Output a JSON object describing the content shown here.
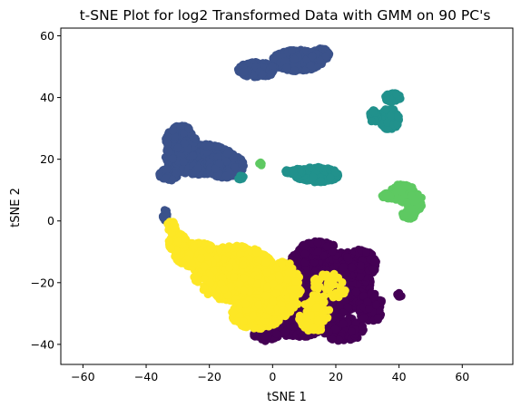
{
  "chart_data": {
    "type": "scatter",
    "title": "t-SNE Plot for log2 Transformed Data with GMM on 90 PC's",
    "xlabel": "tSNE 1",
    "ylabel": "tSNE 2",
    "xlim": [
      -67,
      76
    ],
    "ylim": [
      -46.5,
      62.5
    ],
    "xticks": [
      -60,
      -40,
      -20,
      0,
      20,
      40,
      60
    ],
    "yticks": [
      -40,
      -20,
      0,
      20,
      40,
      60
    ],
    "grid": false,
    "legend": "none",
    "colormap": "viridis",
    "series": [
      {
        "color": "#440154",
        "clusters": [
          {
            "cx": 20,
            "cy": -20,
            "rx": 11,
            "ry": 10,
            "n": 600
          },
          {
            "cx": 10,
            "cy": -20,
            "rx": 8,
            "ry": 10,
            "n": 300
          },
          {
            "cx": 8,
            "cy": -33,
            "rx": 8,
            "ry": 5,
            "n": 260
          },
          {
            "cx": 22,
            "cy": -35,
            "rx": 7,
            "ry": 4,
            "n": 140
          },
          {
            "cx": 27,
            "cy": -14,
            "rx": 6,
            "ry": 5,
            "n": 150
          },
          {
            "cx": 31,
            "cy": -28,
            "rx": 4,
            "ry": 5,
            "n": 80
          },
          {
            "cx": 14,
            "cy": -9,
            "rx": 6,
            "ry": 2.5,
            "n": 90
          },
          {
            "cx": -2,
            "cy": -37,
            "rx": 4,
            "ry": 2,
            "n": 50
          },
          {
            "cx": 40,
            "cy": -24,
            "rx": 1,
            "ry": 0.7,
            "n": 10
          }
        ]
      },
      {
        "color": "#3b528b",
        "clusters": [
          {
            "cx": -23,
            "cy": 20,
            "rx": 11,
            "ry": 5,
            "n": 700
          },
          {
            "cx": -29,
            "cy": 25,
            "rx": 5,
            "ry": 6,
            "n": 300
          },
          {
            "cx": -15,
            "cy": 18,
            "rx": 6,
            "ry": 4,
            "n": 200
          },
          {
            "cx": -33,
            "cy": 15,
            "rx": 3,
            "ry": 2,
            "n": 80
          },
          {
            "cx": 8,
            "cy": 52,
            "rx": 8,
            "ry": 3.5,
            "n": 400
          },
          {
            "cx": -5,
            "cy": 49,
            "rx": 6,
            "ry": 2.5,
            "n": 200
          },
          {
            "cx": 15,
            "cy": 54,
            "rx": 3,
            "ry": 2,
            "n": 80
          },
          {
            "cx": -34,
            "cy": 2,
            "rx": 0.8,
            "ry": 2,
            "n": 15
          }
        ]
      },
      {
        "color": "#21918c",
        "clusters": [
          {
            "cx": 14,
            "cy": 15,
            "rx": 7,
            "ry": 2.5,
            "n": 250
          },
          {
            "cx": 7,
            "cy": 16,
            "rx": 3,
            "ry": 1,
            "n": 50
          },
          {
            "cx": 37,
            "cy": 33,
            "rx": 3,
            "ry": 3.5,
            "n": 150
          },
          {
            "cx": 38,
            "cy": 40,
            "rx": 2.5,
            "ry": 1.5,
            "n": 60
          },
          {
            "cx": 32,
            "cy": 34,
            "rx": 1.5,
            "ry": 2,
            "n": 40
          },
          {
            "cx": -10,
            "cy": 14,
            "rx": 1,
            "ry": 0.8,
            "n": 10
          }
        ]
      },
      {
        "color": "#5ec962",
        "clusters": [
          {
            "cx": 41,
            "cy": 9,
            "rx": 4,
            "ry": 3,
            "n": 150
          },
          {
            "cx": 45,
            "cy": 6,
            "rx": 2.5,
            "ry": 3,
            "n": 80
          },
          {
            "cx": 43,
            "cy": 2,
            "rx": 2,
            "ry": 1.5,
            "n": 40
          },
          {
            "cx": 36,
            "cy": 8,
            "rx": 1.5,
            "ry": 1,
            "n": 20
          },
          {
            "cx": -4,
            "cy": 18.5,
            "rx": 0.7,
            "ry": 0.6,
            "n": 6
          }
        ]
      },
      {
        "color": "#fde725",
        "clusters": [
          {
            "cx": -12,
            "cy": -17,
            "rx": 13,
            "ry": 9,
            "n": 800
          },
          {
            "cx": -24,
            "cy": -11,
            "rx": 7,
            "ry": 4,
            "n": 250
          },
          {
            "cx": -5,
            "cy": -30,
            "rx": 8,
            "ry": 5,
            "n": 300
          },
          {
            "cx": 3,
            "cy": -22,
            "rx": 6,
            "ry": 9,
            "n": 250
          },
          {
            "cx": -30,
            "cy": -7,
            "rx": 3,
            "ry": 3,
            "n": 100
          },
          {
            "cx": -32,
            "cy": -2,
            "rx": 1.5,
            "ry": 2,
            "n": 30
          },
          {
            "cx": 13,
            "cy": -30,
            "rx": 5,
            "ry": 6,
            "n": 70
          },
          {
            "cx": 18,
            "cy": -22,
            "rx": 6,
            "ry": 5,
            "n": 45
          }
        ]
      }
    ]
  }
}
